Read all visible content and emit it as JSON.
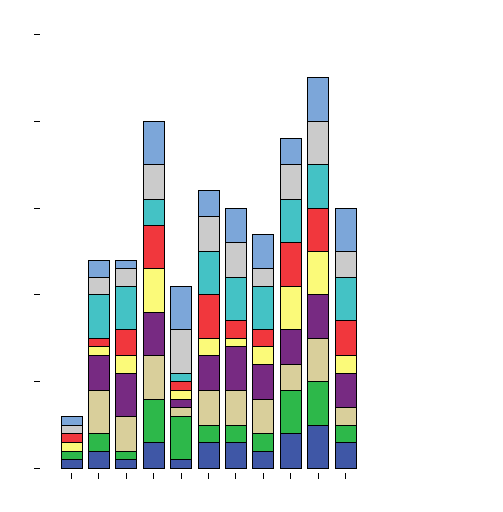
{
  "chart_data": {
    "type": "bar",
    "stacked": true,
    "title": "",
    "xlabel": "",
    "ylabel": "",
    "ylim": [
      0,
      100
    ],
    "yticks": [
      0,
      20,
      40,
      60,
      80,
      100
    ],
    "show_tick_labels": false,
    "grid": false,
    "legend": "none",
    "categories": [
      "1",
      "2",
      "3",
      "4",
      "5",
      "6",
      "7",
      "8",
      "9",
      "10",
      "11"
    ],
    "series": [
      {
        "color": "#3f57a6",
        "values": [
          2,
          4,
          2,
          6,
          2,
          6,
          6,
          4,
          8,
          10,
          6
        ]
      },
      {
        "color": "#2db84a",
        "values": [
          2,
          4,
          2,
          10,
          10,
          4,
          4,
          4,
          10,
          10,
          4
        ]
      },
      {
        "color": "#d9cf9b",
        "values": [
          0,
          10,
          8,
          10,
          2,
          8,
          8,
          8,
          6,
          10,
          4
        ]
      },
      {
        "color": "#772a82",
        "values": [
          0,
          8,
          10,
          10,
          2,
          8,
          10,
          8,
          8,
          10,
          8
        ]
      },
      {
        "color": "#fbfa79",
        "values": [
          2,
          2,
          4,
          10,
          2,
          4,
          2,
          4,
          10,
          10,
          4
        ]
      },
      {
        "color": "#f1373d",
        "values": [
          2,
          2,
          6,
          10,
          2,
          10,
          4,
          4,
          10,
          10,
          8
        ]
      },
      {
        "color": "#44c2c5",
        "values": [
          0,
          10,
          10,
          6,
          2,
          10,
          10,
          10,
          10,
          10,
          10
        ]
      },
      {
        "color": "#cbcbcb",
        "values": [
          2,
          4,
          4,
          8,
          10,
          8,
          8,
          4,
          8,
          10,
          6
        ]
      },
      {
        "color": "#7ca6d9",
        "values": [
          2,
          4,
          2,
          10,
          10,
          6,
          8,
          8,
          6,
          10,
          10
        ]
      }
    ]
  }
}
